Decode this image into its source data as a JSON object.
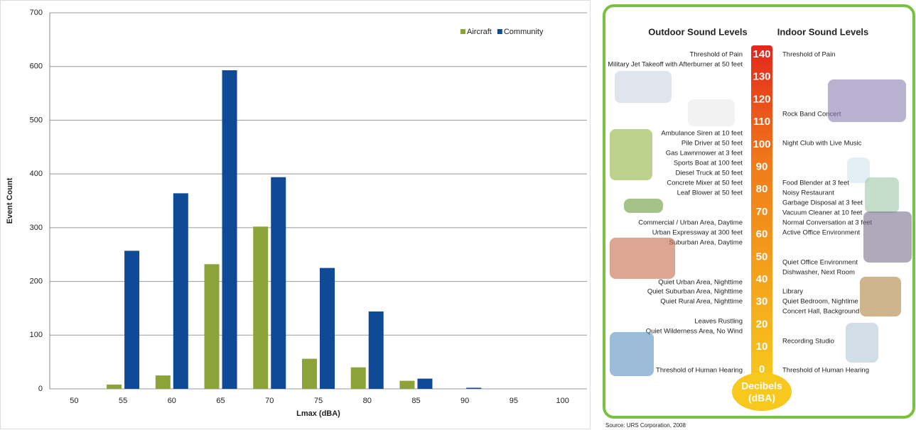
{
  "chart_data": {
    "type": "bar",
    "x_label": "Lmax (dBA)",
    "y_label": "Event Count",
    "categories": [
      "50",
      "55",
      "60",
      "65",
      "70",
      "75",
      "80",
      "85",
      "90",
      "95",
      "100"
    ],
    "series": [
      {
        "name": "Aircraft",
        "color": "#8ca33a",
        "values": [
          0,
          8,
          25,
          232,
          302,
          56,
          40,
          15,
          0,
          0,
          0
        ]
      },
      {
        "name": "Community",
        "color": "#0f4a96",
        "values": [
          0,
          257,
          364,
          593,
          394,
          225,
          144,
          19,
          2,
          0,
          0
        ]
      }
    ],
    "ylim": [
      0,
      700
    ],
    "yticks": [
      0,
      100,
      200,
      300,
      400,
      500,
      600,
      700
    ],
    "grid": true,
    "legend": "top-right"
  },
  "sound_levels": {
    "outdoor_title": "Outdoor Sound Levels",
    "indoor_title": "Indoor Sound Levels",
    "scale": [
      140,
      130,
      120,
      110,
      100,
      90,
      80,
      70,
      60,
      50,
      40,
      30,
      20,
      10,
      0
    ],
    "unit": [
      "Decibels",
      "(dBA)"
    ],
    "outdoor": [
      "Threshold of Pain",
      "Military Jet Takeoff with Afterburner at 50 feet",
      "Ambulance Siren at 10 feet",
      "Pile Driver at 50 feet",
      "Gas Lawnmower at 3 feet",
      "Sports Boat at 100 feet",
      "Diesel Truck at 50 feet",
      "Concrete Mixer at 50 feet",
      "Leaf Blower at 50 feet",
      "Commercial / Urban Area, Daytime",
      "Urban Expressway at 300 feet",
      "Suburban Area, Daytime",
      "Quiet Urban Area, Nighttime",
      "Quiet Suburban Area, Nighttime",
      "Quiet Rural Area, Nighttime",
      "Leaves Rustling",
      "Quiet Wilderness Area, No Wind",
      "Threshold of Human Hearing"
    ],
    "indoor": [
      "Threshold of Pain",
      "Rock Band Concert",
      "Night Club with Live Music",
      "Food Blender at 3 feet",
      "Noisy Restaurant",
      "Garbage Disposal at 3 feet",
      "Vacuum Cleaner at 10 feet",
      "Normal Conversation at 3 feet",
      "Active Office Environment",
      "Quiet Office Environment",
      "Dishwasher, Next Room",
      "Library",
      "Quiet Bedroom, Nightime",
      "Concert Hall, Background",
      "Recording Studio",
      "Threshold of Human Hearing"
    ],
    "source": "Source:  URS Corporation, 2008"
  }
}
